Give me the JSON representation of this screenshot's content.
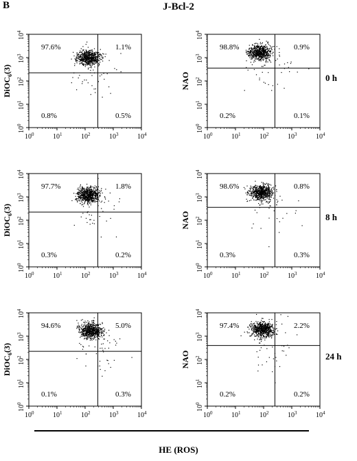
{
  "panel_letter": "B",
  "title": "J-Bcl-2",
  "x_axis_label": "HE (ROS)",
  "chart_data": [
    {
      "type": "scatter",
      "row": 0,
      "col": 0,
      "time_label": "0 h",
      "ylabel": "DiOC6(3)",
      "xlim_log10": [
        0,
        4
      ],
      "ylim_log10": [
        0,
        4
      ],
      "quadrant_gate": {
        "x_log10": 2.45,
        "y_log10": 2.35
      },
      "quadrants": {
        "upper_left": "97.6%",
        "upper_right": "1.1%",
        "lower_left": "0.8%",
        "lower_right": "0.5%"
      },
      "cluster_center_log10": {
        "x": 2.1,
        "y": 3.0
      }
    },
    {
      "type": "scatter",
      "row": 0,
      "col": 1,
      "time_label": "0 h",
      "ylabel": "NAO",
      "xlim_log10": [
        0,
        4
      ],
      "ylim_log10": [
        0,
        4
      ],
      "quadrant_gate": {
        "x_log10": 2.4,
        "y_log10": 2.55
      },
      "quadrants": {
        "upper_left": "98.8%",
        "upper_right": "0.9%",
        "lower_left": "0.2%",
        "lower_right": "0.1%"
      },
      "cluster_center_log10": {
        "x": 1.85,
        "y": 3.25
      }
    },
    {
      "type": "scatter",
      "row": 1,
      "col": 0,
      "time_label": "8 h",
      "ylabel": "DiOC6(3)",
      "xlim_log10": [
        0,
        4
      ],
      "ylim_log10": [
        0,
        4
      ],
      "quadrant_gate": {
        "x_log10": 2.45,
        "y_log10": 2.35
      },
      "quadrants": {
        "upper_left": "97.7%",
        "upper_right": "1.8%",
        "lower_left": "0.3%",
        "lower_right": "0.2%"
      },
      "cluster_center_log10": {
        "x": 2.1,
        "y": 3.1
      }
    },
    {
      "type": "scatter",
      "row": 1,
      "col": 1,
      "time_label": "8 h",
      "ylabel": "NAO",
      "xlim_log10": [
        0,
        4
      ],
      "ylim_log10": [
        0,
        4
      ],
      "quadrant_gate": {
        "x_log10": 2.4,
        "y_log10": 2.55
      },
      "quadrants": {
        "upper_left": "98.6%",
        "upper_right": "0.8%",
        "lower_left": "0.3%",
        "lower_right": "0.3%"
      },
      "cluster_center_log10": {
        "x": 1.9,
        "y": 3.2
      }
    },
    {
      "type": "scatter",
      "row": 2,
      "col": 0,
      "time_label": "24 h",
      "ylabel": "DiOC6(3)",
      "xlim_log10": [
        0,
        4
      ],
      "ylim_log10": [
        0,
        4
      ],
      "quadrant_gate": {
        "x_log10": 2.45,
        "y_log10": 2.35
      },
      "quadrants": {
        "upper_left": "94.6%",
        "upper_right": "5.0%",
        "lower_left": "0.1%",
        "lower_right": "0.3%"
      },
      "cluster_center_log10": {
        "x": 2.2,
        "y": 3.25
      }
    },
    {
      "type": "scatter",
      "row": 2,
      "col": 1,
      "time_label": "24 h",
      "ylabel": "NAO",
      "xlim_log10": [
        0,
        4
      ],
      "ylim_log10": [
        0,
        4
      ],
      "quadrant_gate": {
        "x_log10": 2.4,
        "y_log10": 2.6
      },
      "quadrants": {
        "upper_left": "97.4%",
        "upper_right": "2.2%",
        "lower_left": "0.2%",
        "lower_right": "0.2%"
      },
      "cluster_center_log10": {
        "x": 1.95,
        "y": 3.3
      }
    }
  ]
}
